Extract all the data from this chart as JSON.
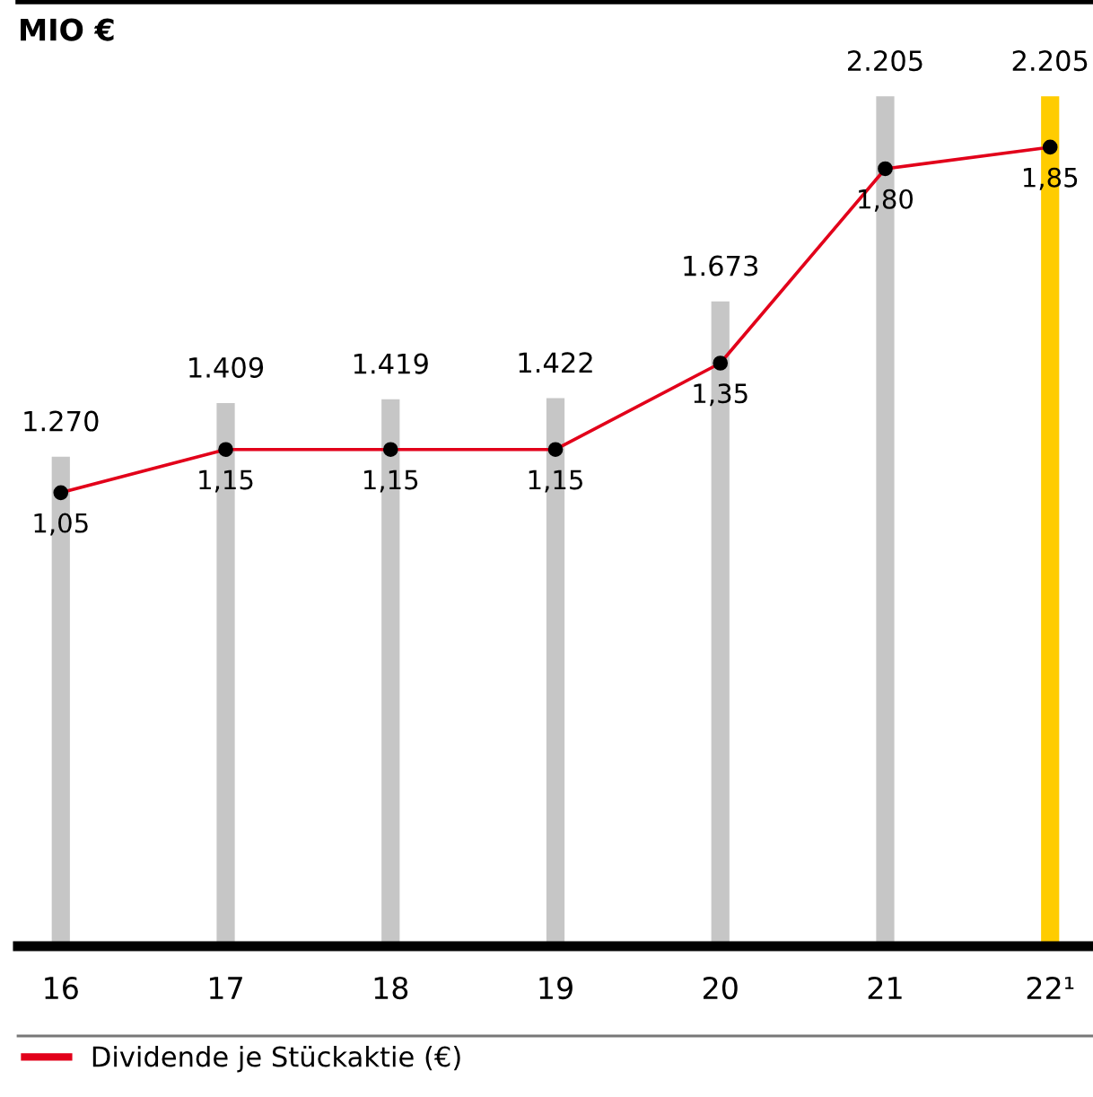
{
  "chart_data": {
    "type": "bar",
    "ylabel": "MIO €",
    "categories": [
      "16",
      "17",
      "18",
      "19",
      "20",
      "21",
      "22¹"
    ],
    "tick_labels": "x",
    "grid": false,
    "legend": "bottom",
    "series": [
      {
        "colors": [
          "#c6c6c6",
          "#c6c6c6",
          "#c6c6c6",
          "#c6c6c6",
          "#c6c6c6",
          "#c6c6c6",
          "#ffcc00"
        ],
        "values": [
          1270,
          1409,
          1419,
          1422,
          1673,
          2205,
          2205
        ],
        "value_labels": [
          "1.270",
          "1.409",
          "1.419",
          "1.422",
          "1.673",
          "2.205",
          "2.205"
        ]
      },
      {
        "type": "line",
        "axis": "y2",
        "name": "Dividende je Stückaktie (€)",
        "color": "#e2001a",
        "marker": "circle",
        "values": [
          1.05,
          1.15,
          1.15,
          1.15,
          1.35,
          1.8,
          1.85
        ],
        "value_labels": [
          "1,05",
          "1,15",
          "1,15",
          "1,15",
          "1,35",
          "1,80",
          "1,85"
        ]
      }
    ]
  }
}
